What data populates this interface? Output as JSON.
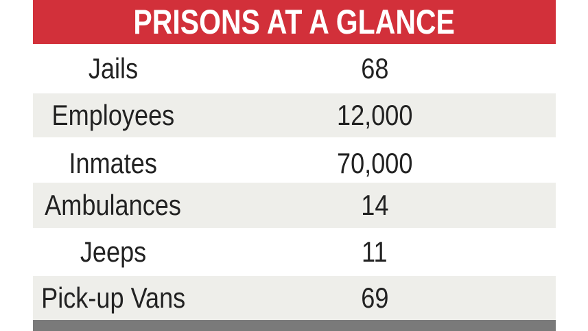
{
  "chart_data": {
    "type": "table",
    "title": "PRISONS AT A GLANCE",
    "rows": [
      {
        "label": "Jails",
        "value": "68"
      },
      {
        "label": "Employees",
        "value": "12,000"
      },
      {
        "label": "Inmates",
        "value": "70,000"
      },
      {
        "label": "Ambulances",
        "value": "14"
      },
      {
        "label": "Jeeps",
        "value": "11"
      },
      {
        "label": "Pick-up Vans",
        "value": "69"
      }
    ]
  },
  "colors": {
    "header_bg": "#d2303a",
    "header_text": "#ffffff",
    "row_shade": "#eeeeea",
    "footer_bar": "#7a7a7a",
    "text": "#222222"
  }
}
